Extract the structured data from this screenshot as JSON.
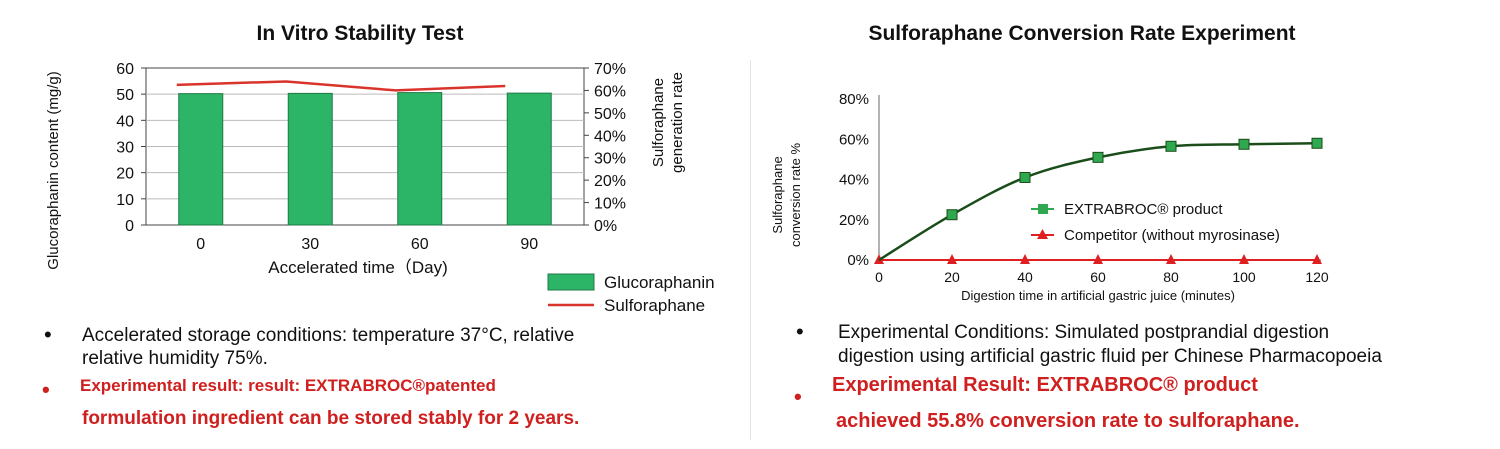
{
  "colors": {
    "bar_fill": "#2db567",
    "bar_stroke": "#1f7a45",
    "sulforaphane_line": "#d9342b",
    "product_line": "#1a4d1a",
    "product_marker": "#2fa84f",
    "competitor": "#e02020",
    "result_text": "#d01f1f"
  },
  "left": {
    "bullet": "•",
    "condition_line1": "Accelerated storage conditions: temperature 37°C, relative",
    "condition_line2": "relative humidity 75%.",
    "result_bullet": "•",
    "result_line1": "Experimental result: result: EXTRABROC®patented",
    "result_line2": "formulation ingredient can be stored stably for 2 years."
  },
  "right": {
    "bullet": "•",
    "condition_line1": "Experimental Conditions: Simulated postprandial digestion",
    "condition_line2": "digestion using artificial gastric fluid per Chinese Pharmacopoeia",
    "result_bullet": "•",
    "result_line1": "Experimental Result: EXTRABROC® product",
    "result_line2": "achieved 55.8% conversion rate to sulforaphane."
  },
  "chart_data": [
    {
      "type": "bar",
      "title": "In Vitro Stability Test",
      "categories": [
        "0",
        "30",
        "60",
        "90"
      ],
      "xlabel": "Accelerated time（Day)",
      "ylabel": "Glucoraphanin content (mg/g)",
      "y2label_line1": "Sulforaphane",
      "y2label_line2": "generation rate",
      "ylim": [
        0,
        60
      ],
      "y2lim": [
        0,
        70
      ],
      "yticks": [
        "0",
        "10",
        "20",
        "30",
        "40",
        "50",
        "60"
      ],
      "y2ticks": [
        "0%",
        "10%",
        "20%",
        "30%",
        "40%",
        "50%",
        "60%",
        "70%"
      ],
      "grid": true,
      "legend_position": "bottom-right",
      "series": [
        {
          "name": "Glucoraphanin",
          "type": "bar",
          "axis": "left",
          "values": [
            50.2,
            50.3,
            50.6,
            50.4
          ]
        },
        {
          "name": "Sulforaphane",
          "type": "line",
          "axis": "right",
          "values": [
            62.5,
            64.0,
            60.0,
            62.0
          ]
        }
      ]
    },
    {
      "type": "line",
      "title": "Sulforaphane Conversion Rate Experiment",
      "x": [
        0,
        20,
        40,
        60,
        80,
        100,
        120
      ],
      "xticks": [
        "0",
        "20",
        "40",
        "60",
        "80",
        "100",
        "120"
      ],
      "xlabel": "Digestion time in artificial gastric juice (minutes)",
      "ylabel_line1": "Sulforaphane",
      "ylabel_line2": "conversion rate %",
      "ylim": [
        0,
        80
      ],
      "yticks": [
        "0%",
        "20%",
        "40%",
        "60%",
        "80%"
      ],
      "grid": false,
      "legend_position": "center-right",
      "series": [
        {
          "name": "EXTRABROC® product",
          "marker": "square",
          "values": [
            0,
            22.5,
            41,
            51,
            56.5,
            57.5,
            58
          ]
        },
        {
          "name": "Competitor (without myrosinase)",
          "marker": "triangle",
          "values": [
            0,
            0,
            0,
            0,
            0,
            0,
            0
          ]
        }
      ]
    }
  ]
}
